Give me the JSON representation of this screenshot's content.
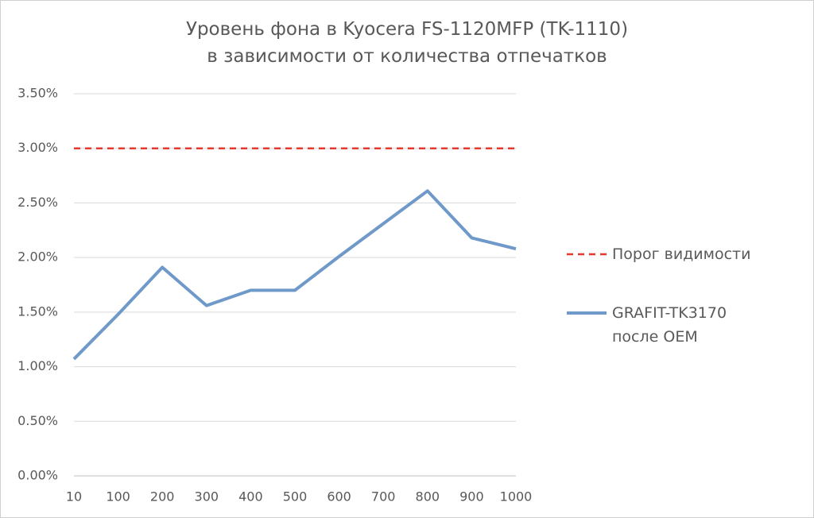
{
  "chart_data": {
    "type": "line",
    "title": "Уровень фона в Kyocera FS-1120MFP (TK-1110)\nв зависимости от количества отпечатков",
    "categories": [
      "10",
      "100",
      "200",
      "300",
      "400",
      "500",
      "600",
      "700",
      "800",
      "900",
      "1000"
    ],
    "series": [
      {
        "name": "Порог видимости",
        "color": "#e8372b",
        "dashed": true,
        "values": [
          3,
          3,
          3,
          3,
          3,
          3,
          3,
          3,
          3,
          3,
          3
        ]
      },
      {
        "name": "GRAFIT-TK3170 после OEM",
        "color": "#6f99c9",
        "dashed": false,
        "values": [
          1.07,
          1.48,
          1.91,
          1.56,
          1.7,
          1.7,
          2.01,
          2.31,
          2.61,
          2.18,
          2.08
        ]
      }
    ],
    "ylim": [
      0,
      3.5
    ],
    "yticks": [
      {
        "value": 0,
        "label": "0.00%"
      },
      {
        "value": 0.5,
        "label": "0.50%"
      },
      {
        "value": 1,
        "label": "1.00%"
      },
      {
        "value": 1.5,
        "label": "1.50%"
      },
      {
        "value": 2,
        "label": "2.00%"
      },
      {
        "value": 2.5,
        "label": "2.50%"
      },
      {
        "value": 3,
        "label": "3.00%"
      },
      {
        "value": 3.5,
        "label": "3.50%"
      }
    ],
    "grid": true,
    "legend": "right"
  }
}
